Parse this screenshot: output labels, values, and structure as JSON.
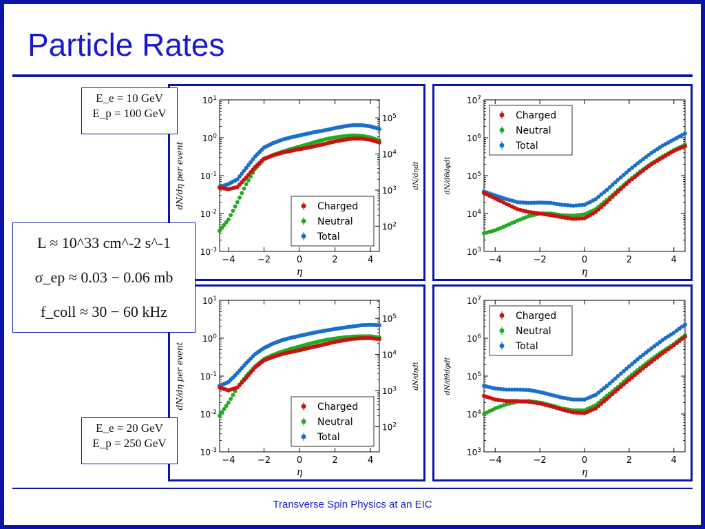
{
  "slide": {
    "title": "Particle Rates",
    "footer": "Transverse Spin Physics at an EIC",
    "beam_boxes": [
      {
        "ee": "E_e = 10 GeV",
        "ep": "E_p = 100 GeV"
      },
      {
        "ee": "E_e = 20 GeV",
        "ep": "E_p = 250 GeV"
      }
    ],
    "luminosity_box": {
      "luminosity": "L ≈ 10^33 cm^-2 s^-1",
      "cross_section": "σ_ep ≈ 0.03 − 0.06 mb",
      "collision_freq": "f_coll ≈ 30 − 60 kHz"
    }
  },
  "colors": {
    "Charged": "#cc1111",
    "Neutral": "#22aa22",
    "Total": "#1a6fcc",
    "frame": "#0b14a8",
    "title": "#1a1acc"
  },
  "chart_data": [
    {
      "type": "scatter",
      "panel": "top-left",
      "xlabel": "η",
      "ylabel": "dN/dη per event",
      "ylabel_right": "dN/dηdt",
      "xlim": [
        -4.5,
        4.5
      ],
      "ylim_log10": [
        -3,
        1
      ],
      "y_scale": "log",
      "x_ticks": [
        "−4",
        "−2",
        "0",
        "2",
        "4"
      ],
      "y_ticks": [
        "10^-3",
        "10^-2",
        "10^-1",
        "10^0",
        "10^1"
      ],
      "y_ticks_right": [
        "10^2",
        "10^3",
        "10^4",
        "10^5"
      ],
      "legend": [
        "Charged",
        "Neutral",
        "Total"
      ],
      "legend_position": "bottom-right",
      "series": [
        {
          "name": "Charged",
          "x": [
            -4.5,
            -4,
            -3.5,
            -3,
            -2.5,
            -2,
            -1.5,
            -1,
            -0.5,
            0,
            0.5,
            1,
            1.5,
            2,
            2.5,
            3,
            3.5,
            4,
            4.5
          ],
          "y": [
            0.048,
            0.044,
            0.05,
            0.09,
            0.17,
            0.28,
            0.34,
            0.4,
            0.45,
            0.5,
            0.55,
            0.62,
            0.7,
            0.8,
            0.88,
            0.95,
            0.95,
            0.88,
            0.75
          ]
        },
        {
          "name": "Neutral",
          "x": [
            -4.5,
            -4,
            -3.5,
            -3,
            -2.5,
            -2,
            -1.5,
            -1,
            -0.5,
            0,
            0.5,
            1,
            1.5,
            2,
            2.5,
            3,
            3.5,
            4,
            4.5
          ],
          "y": [
            0.0035,
            0.007,
            0.02,
            0.06,
            0.15,
            0.27,
            0.35,
            0.42,
            0.5,
            0.58,
            0.68,
            0.8,
            0.92,
            1.02,
            1.1,
            1.15,
            1.12,
            1.02,
            0.85
          ]
        },
        {
          "name": "Total",
          "x": [
            -4.5,
            -4,
            -3.5,
            -3,
            -2.5,
            -2,
            -1.5,
            -1,
            -0.5,
            0,
            0.5,
            1,
            1.5,
            2,
            2.5,
            3,
            3.5,
            4,
            4.5
          ],
          "y": [
            0.05,
            0.06,
            0.08,
            0.16,
            0.32,
            0.55,
            0.72,
            0.88,
            1.02,
            1.15,
            1.3,
            1.45,
            1.6,
            1.8,
            2.0,
            2.15,
            2.15,
            2.0,
            1.7
          ]
        }
      ]
    },
    {
      "type": "scatter",
      "panel": "top-right",
      "xlabel": "η",
      "ylabel": "dN/dθdφdt",
      "xlim": [
        -4.5,
        4.5
      ],
      "ylim_log10": [
        3,
        7
      ],
      "y_scale": "log",
      "x_ticks": [
        "−4",
        "−2",
        "0",
        "2",
        "4"
      ],
      "y_ticks": [
        "10^3",
        "10^4",
        "10^5",
        "10^6",
        "10^7"
      ],
      "legend": [
        "Charged",
        "Neutral",
        "Total"
      ],
      "legend_position": "top-left",
      "series": [
        {
          "name": "Charged",
          "x": [
            -4.5,
            -4,
            -3.5,
            -3,
            -2.5,
            -2,
            -1.5,
            -1,
            -0.5,
            0,
            0.5,
            1,
            1.5,
            2,
            2.5,
            3,
            3.5,
            4,
            4.5
          ],
          "y": [
            35000,
            25000,
            18000,
            13000,
            11000,
            10000,
            9000,
            8000,
            7200,
            7500,
            11000,
            20000,
            38000,
            70000,
            120000,
            200000,
            300000,
            450000,
            600000
          ]
        },
        {
          "name": "Neutral",
          "x": [
            -4.5,
            -4,
            -3.5,
            -3,
            -2.5,
            -2,
            -1.5,
            -1,
            -0.5,
            0,
            0.5,
            1,
            1.5,
            2,
            2.5,
            3,
            3.5,
            4,
            4.5
          ],
          "y": [
            3000,
            3600,
            4800,
            6500,
            8500,
            10000,
            10000,
            9000,
            8800,
            9500,
            13000,
            23000,
            42000,
            75000,
            130000,
            210000,
            320000,
            470000,
            650000
          ]
        },
        {
          "name": "Total",
          "x": [
            -4.5,
            -4,
            -3.5,
            -3,
            -2.5,
            -2,
            -1.5,
            -1,
            -0.5,
            0,
            0.5,
            1,
            1.5,
            2,
            2.5,
            3,
            3.5,
            4,
            4.5
          ],
          "y": [
            38000,
            30000,
            24000,
            20000,
            19000,
            19500,
            19000,
            17000,
            16000,
            17000,
            24000,
            42000,
            78000,
            140000,
            240000,
            400000,
            620000,
            900000,
            1300000
          ]
        }
      ]
    },
    {
      "type": "scatter",
      "panel": "bottom-left",
      "xlabel": "η",
      "ylabel": "dN/dη per event",
      "ylabel_right": "dN/dηdt",
      "xlim": [
        -4.5,
        4.5
      ],
      "ylim_log10": [
        -3,
        1
      ],
      "y_scale": "log",
      "x_ticks": [
        "−4",
        "−2",
        "0",
        "2",
        "4"
      ],
      "y_ticks": [
        "10^-3",
        "10^-2",
        "10^-1",
        "10^0",
        "10^1"
      ],
      "y_ticks_right": [
        "10^2",
        "10^3",
        "10^4",
        "10^5"
      ],
      "legend": [
        "Charged",
        "Neutral",
        "Total"
      ],
      "legend_position": "bottom-right",
      "series": [
        {
          "name": "Charged",
          "x": [
            -4.5,
            -4,
            -3.5,
            -3,
            -2.5,
            -2,
            -1.5,
            -1,
            -0.5,
            0,
            0.5,
            1,
            1.5,
            2,
            2.5,
            3,
            3.5,
            4,
            4.5
          ],
          "y": [
            0.05,
            0.042,
            0.05,
            0.09,
            0.17,
            0.26,
            0.32,
            0.38,
            0.43,
            0.48,
            0.55,
            0.62,
            0.7,
            0.8,
            0.88,
            0.96,
            1.0,
            1.0,
            0.95
          ]
        },
        {
          "name": "Neutral",
          "x": [
            -4.5,
            -4,
            -3.5,
            -3,
            -2.5,
            -2,
            -1.5,
            -1,
            -0.5,
            0,
            0.5,
            1,
            1.5,
            2,
            2.5,
            3,
            3.5,
            4,
            4.5
          ],
          "y": [
            0.009,
            0.02,
            0.05,
            0.1,
            0.18,
            0.28,
            0.36,
            0.44,
            0.52,
            0.6,
            0.7,
            0.8,
            0.9,
            0.98,
            1.05,
            1.1,
            1.12,
            1.12,
            1.05
          ]
        },
        {
          "name": "Total",
          "x": [
            -4.5,
            -4,
            -3.5,
            -3,
            -2.5,
            -2,
            -1.5,
            -1,
            -0.5,
            0,
            0.5,
            1,
            1.5,
            2,
            2.5,
            3,
            3.5,
            4,
            4.5
          ],
          "y": [
            0.055,
            0.07,
            0.12,
            0.22,
            0.38,
            0.55,
            0.72,
            0.88,
            1.02,
            1.15,
            1.3,
            1.45,
            1.6,
            1.75,
            1.9,
            2.05,
            2.2,
            2.25,
            2.2
          ]
        }
      ]
    },
    {
      "type": "scatter",
      "panel": "bottom-right",
      "xlabel": "η",
      "ylabel": "dN/dθdφdt",
      "xlim": [
        -4.5,
        4.5
      ],
      "ylim_log10": [
        3,
        7
      ],
      "y_scale": "log",
      "x_ticks": [
        "−4",
        "−2",
        "0",
        "2",
        "4"
      ],
      "y_ticks": [
        "10^3",
        "10^4",
        "10^5",
        "10^6",
        "10^7"
      ],
      "legend": [
        "Charged",
        "Neutral",
        "Total"
      ],
      "legend_position": "top-left",
      "series": [
        {
          "name": "Charged",
          "x": [
            -4.5,
            -4,
            -3.5,
            -3,
            -2.5,
            -2,
            -1.5,
            -1,
            -0.5,
            0,
            0.5,
            1,
            1.5,
            2,
            2.5,
            3,
            3.5,
            4,
            4.5
          ],
          "y": [
            30000,
            24000,
            22000,
            22000,
            21000,
            19000,
            16000,
            13000,
            11000,
            10500,
            14000,
            25000,
            45000,
            80000,
            140000,
            240000,
            400000,
            650000,
            1100000
          ]
        },
        {
          "name": "Neutral",
          "x": [
            -4.5,
            -4,
            -3.5,
            -3,
            -2.5,
            -2,
            -1.5,
            -1,
            -0.5,
            0,
            0.5,
            1,
            1.5,
            2,
            2.5,
            3,
            3.5,
            4,
            4.5
          ],
          "y": [
            10000,
            14000,
            18000,
            21000,
            22000,
            20000,
            17000,
            14000,
            12500,
            12500,
            17000,
            30000,
            52000,
            95000,
            165000,
            280000,
            450000,
            700000,
            1200000
          ]
        },
        {
          "name": "Total",
          "x": [
            -4.5,
            -4,
            -3.5,
            -3,
            -2.5,
            -2,
            -1.5,
            -1,
            -0.5,
            0,
            0.5,
            1,
            1.5,
            2,
            2.5,
            3,
            3.5,
            4,
            4.5
          ],
          "y": [
            55000,
            47000,
            44000,
            44000,
            43000,
            38000,
            32000,
            27000,
            24000,
            24000,
            32000,
            55000,
            100000,
            180000,
            320000,
            540000,
            900000,
            1400000,
            2300000
          ]
        }
      ]
    }
  ]
}
